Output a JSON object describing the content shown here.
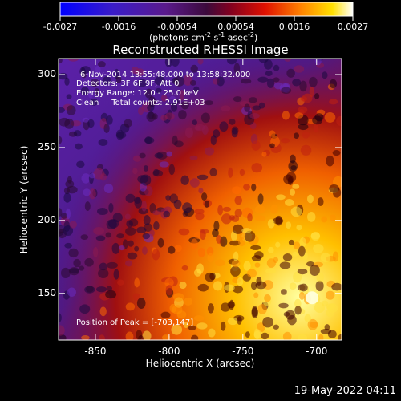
{
  "colorbar": {
    "ticks": [
      "-0.0027",
      "-0.0016",
      "-0.00054",
      "0.00054",
      "0.0016",
      "0.0027"
    ],
    "units_main": "(photons cm",
    "units_exp1": "-2",
    "units_mid": " s",
    "units_exp2": "-1",
    "units_tail": " asec",
    "units_exp3": "-2",
    "units_close": ")"
  },
  "chart_data": {
    "type": "heatmap",
    "title": "Reconstructed RHESSI Image",
    "xlabel": "Heliocentric X (arcsec)",
    "ylabel": "Heliocentric Y (arcsec)",
    "xlim": [
      -875,
      -683
    ],
    "ylim": [
      118,
      311
    ],
    "xticks": [
      -850,
      -800,
      -750,
      -700
    ],
    "yticks": [
      150,
      200,
      250,
      300
    ],
    "colorbar_range": [
      -0.0027,
      0.0027
    ],
    "colormap": "blue-purple-red-yellow-white",
    "peak": [
      -703,
      147
    ]
  },
  "info": {
    "time_range": "6-Nov-2014 13:55:48.000 to 13:58:32.000",
    "detectors": "Detectors: 3F 6F 9F, Att 0",
    "energy": "Energy Range: 12.0 - 25.0 keV",
    "method": "Clean     Total counts: 2.91E+03",
    "peak_label": "Position of Peak = [-703,147]"
  },
  "footer": {
    "timestamp": "19-May-2022 04:11"
  }
}
